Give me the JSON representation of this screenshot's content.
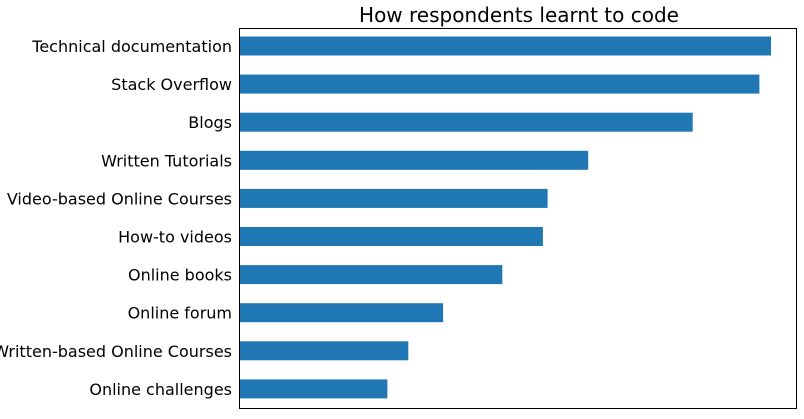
{
  "chart_data": {
    "type": "bar",
    "orientation": "horizontal",
    "title": "How respondents learnt to code",
    "xlabel": "",
    "ylabel": "",
    "grid": false,
    "x_ticks_shown": false,
    "xlim": [
      0,
      9150
    ],
    "categories": [
      "Technical documentation",
      "Stack Overflow",
      "Blogs",
      "Written Tutorials",
      "Video-based Online Courses",
      "How-to videos",
      "Online books",
      "Online forum",
      "Written-based Online Courses",
      "Online challenges "
    ],
    "values": [
      9150,
      8950,
      7800,
      6000,
      5300,
      5220,
      4520,
      3500,
      2900,
      2540
    ],
    "bar_color": "#1f77b4"
  }
}
